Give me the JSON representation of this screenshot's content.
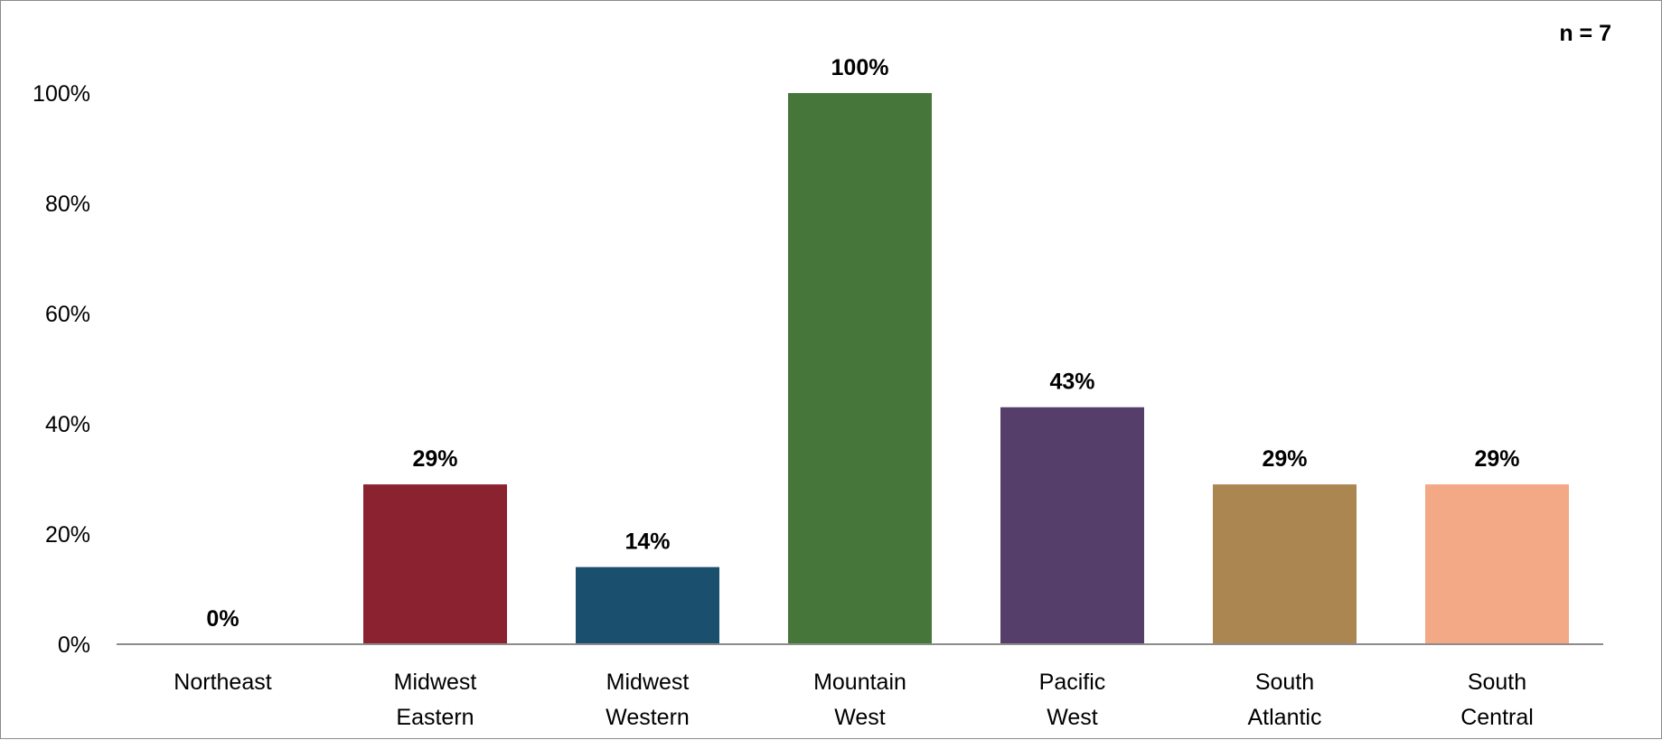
{
  "chart_data": {
    "type": "bar",
    "annotation": "n = 7",
    "categories": [
      [
        "Northeast"
      ],
      [
        "Midwest",
        "Eastern"
      ],
      [
        "Midwest",
        "Western"
      ],
      [
        "Mountain",
        "West"
      ],
      [
        "Pacific",
        "West"
      ],
      [
        "South",
        "Atlantic"
      ],
      [
        "South",
        "Central"
      ]
    ],
    "values": [
      0,
      29,
      14,
      100,
      43,
      29,
      29
    ],
    "data_labels": [
      "0%",
      "29%",
      "14%",
      "100%",
      "43%",
      "29%",
      "29%"
    ],
    "colors": [
      "#8b2230",
      "#8b2230",
      "#1b4f6e",
      "#467639",
      "#553f6a",
      "#ac8650",
      "#f3a886"
    ],
    "ylim": [
      0,
      100
    ],
    "yticks": [
      0,
      20,
      40,
      60,
      80,
      100
    ],
    "ytick_labels": [
      "0%",
      "20%",
      "40%",
      "60%",
      "80%",
      "100%"
    ],
    "grid": false,
    "legend": false,
    "title": "",
    "xlabel": "",
    "ylabel": ""
  }
}
